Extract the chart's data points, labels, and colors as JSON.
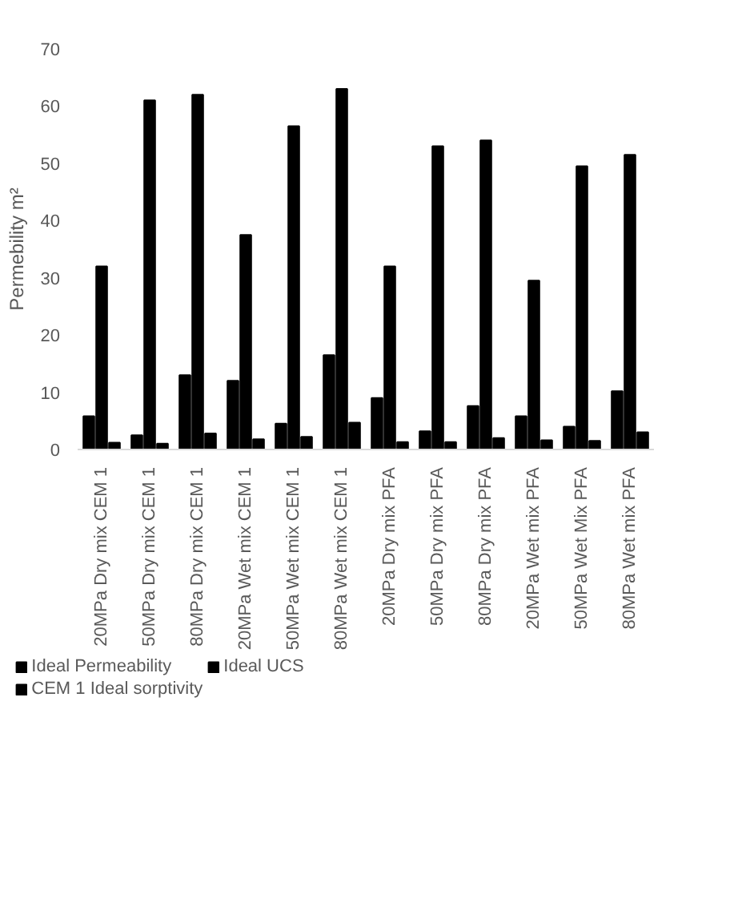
{
  "chart_data": {
    "type": "bar",
    "ylabel": "Permebility m²",
    "categories": [
      "20MPa Dry mix CEM 1",
      "50MPa Dry mix CEM 1",
      "80MPa Dry mix CEM 1",
      "20MPa Wet mix CEM 1",
      "50MPa Wet mix CEM 1",
      "80MPa Wet mix CEM 1",
      "20MPa Dry mix PFA",
      "50MPa Dry mix PFA",
      "80MPa Dry mix PFA",
      "20MPa Wet mix PFA",
      "50MPa Wet Mix PFA",
      "80MPa Wet mix PFA"
    ],
    "series": [
      {
        "name": "Ideal Permeability",
        "color": "#000000",
        "values": [
          5.8,
          2.5,
          13,
          12,
          4.5,
          16.5,
          9,
          3.2,
          7.6,
          5.8,
          4,
          10.2
        ]
      },
      {
        "name": "Ideal UCS",
        "color": "#000000",
        "values": [
          32,
          61,
          62,
          37.5,
          56.5,
          63,
          32,
          53,
          54,
          29.5,
          49.5,
          51.5
        ]
      },
      {
        "name": "CEM 1 Ideal sorptivity",
        "color": "#000000",
        "values": [
          1.2,
          1,
          2.8,
          1.8,
          2.2,
          4.7,
          1.3,
          1.3,
          2,
          1.6,
          1.5,
          3
        ]
      }
    ],
    "ylim": [
      0,
      70
    ],
    "yticks": [
      0,
      10,
      20,
      30,
      40,
      50,
      60,
      70
    ],
    "grid": false,
    "legend": "bottom"
  }
}
